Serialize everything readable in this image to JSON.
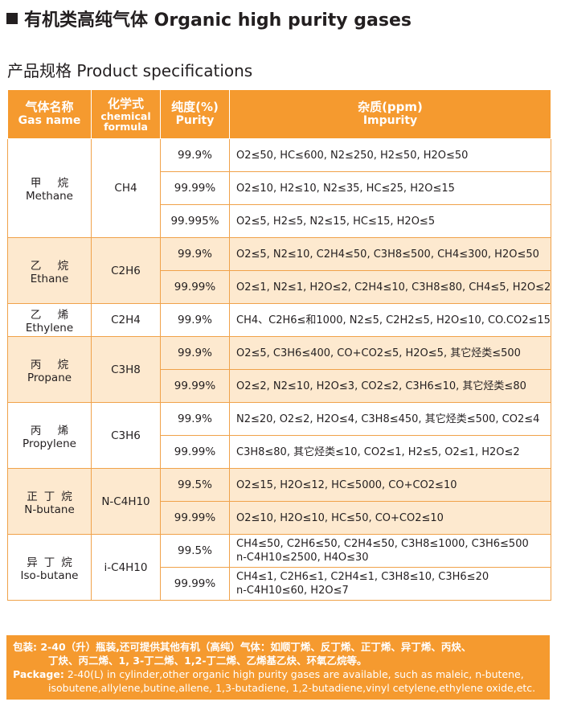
{
  "title": "有机类高纯气体  Organic high purity gases",
  "section_title": "产品规格 Product specifications",
  "header": {
    "gas_cn": "气体名称",
    "gas_en": "Gas name",
    "formula_cn": "化学式",
    "formula_en1": "chemical",
    "formula_en2": "formula",
    "purity_cn": "纯度(%)",
    "purity_en": "Purity",
    "impurity_cn": "杂质(ppm)",
    "impurity_en": "Impurity"
  },
  "gases": [
    {
      "cn": "甲 烷",
      "en": "Methane",
      "formula": "CH4",
      "rows": [
        [
          "99.9%",
          "O2≤50, HC≤600, N2≤250, H2≤50, H2O≤50"
        ],
        [
          "99.99%",
          "O2≤10, H2≤10, N2≤35, HC≤25, H2O≤15"
        ],
        [
          "99.995%",
          "O2≤5, H2≤5, N2≤15, HC≤15, H2O≤5"
        ]
      ]
    },
    {
      "cn": "乙 烷",
      "en": "Ethane",
      "formula": "C2H6",
      "rows": [
        [
          "99.9%",
          "O2≤5, N2≤10, C2H4≤50, C3H8≤500, CH4≤300, H2O≤50"
        ],
        [
          "99.99%",
          "O2≤1, N2≤1, H2O≤2, C2H4≤10, C3H8≤80, CH4≤5, H2O≤2"
        ]
      ]
    },
    {
      "cn": "乙 烯",
      "en": "Ethylene",
      "formula": "C2H4",
      "rows": [
        [
          "99.9%",
          "CH4、C2H6≤和1000, N2≤5, C2H2≤5, H2O≤10, CO.CO2≤15"
        ]
      ]
    },
    {
      "cn": "丙 烷",
      "en": "Propane",
      "formula": "C3H8",
      "rows": [
        [
          "99.9%",
          "O2≤5, C3H6≤400, CO+CO2≤5, H2O≤5, 其它烃类≤500"
        ],
        [
          "99.99%",
          "O2≤2, N2≤10, H2O≤3, CO2≤2, C3H6≤10, 其它烃类≤80"
        ]
      ]
    },
    {
      "cn": "丙 烯",
      "en": "Propylene",
      "formula": "C3H6",
      "rows": [
        [
          "99.9%",
          "N2≤20, O2≤2, H2O≤4, C3H8≤450, 其它烃类≤500, CO2≤4"
        ],
        [
          "99.99%",
          "C3H8≤80, 其它烃类≤10, CO2≤1, H2≤5, O2≤1, H2O≤2"
        ]
      ]
    },
    {
      "cn": "正丁烷",
      "en": "N-butane",
      "formula": "N-C4H10",
      "rows": [
        [
          "99.5%",
          "O2≤15, H2O≤12, HC≤5000, CO+CO2≤10"
        ],
        [
          "99.99%",
          "O2≤10, H2O≤10, HC≤50, CO+CO2≤10"
        ]
      ]
    },
    {
      "cn": "异丁烷",
      "en": "Iso-butane",
      "formula": "i-C4H10",
      "rows": [
        [
          "99.5%",
          "CH4≤50, C2H6≤50, C2H4≤50, C3H8≤1000, C3H6≤500\nn-C4H10≤2500, H4O≤30"
        ],
        [
          "99.99%",
          "CH4≤1, C2H6≤1, C2H4≤1, C3H8≤10, C3H6≤20\nn-C4H10≤60, H2O≤7"
        ]
      ]
    }
  ],
  "footer": {
    "cn_label": "包装:",
    "cn_line1": "2-40（升）瓶装,还可提供其他有机（高纯）气体：如顺丁烯、反丁烯、正丁烯、异丁烯、丙炔、",
    "cn_line2": "丁炔、丙二烯、1, 3-丁二烯、1,2-丁二烯、乙烯基乙炔、环氧乙烷等。",
    "en_label": "Package:",
    "en_line1": " 2-40(L) in cylinder,other organic high purity gases are available, such as maleic, n-butene,",
    "en_line2": "isobutene,allylene,butine,allene, 1,3-butadiene, 1,2-butadiene,vinyl cetylene,ethylene oxide,etc."
  },
  "colors": {
    "accent": "#f59a2f",
    "shade": "#fde9cf",
    "border": "#f0a24a"
  }
}
